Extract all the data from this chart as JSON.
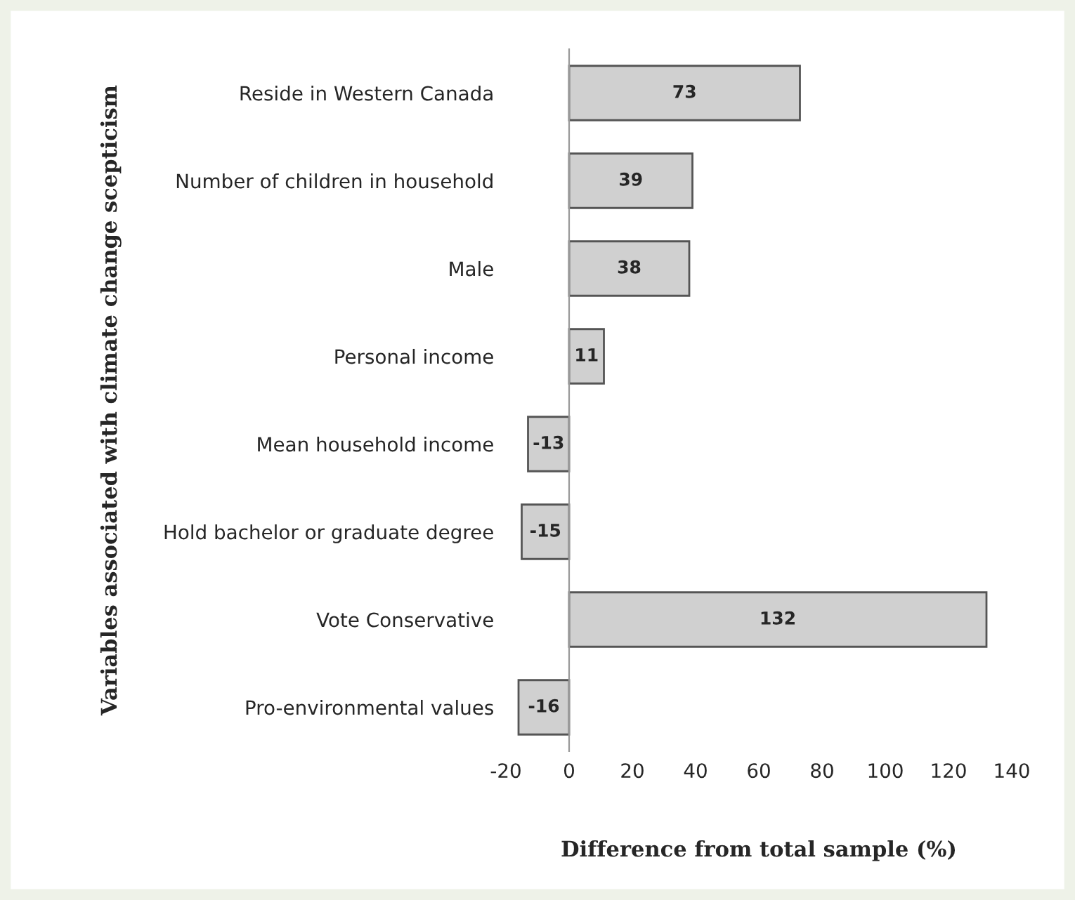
{
  "chart_data": {
    "type": "bar",
    "orientation": "horizontal",
    "xlabel": "Difference from total sample (%)",
    "ylabel": "Variables associated with climate change scepticism",
    "categories": [
      "Reside in Western Canada",
      "Number of children in household",
      "Male",
      "Personal income",
      "Mean household income",
      "Hold bachelor or graduate degree",
      "Vote Conservative",
      "Pro-environmental values"
    ],
    "values": [
      73,
      39,
      38,
      11,
      -13,
      -15,
      132,
      -16
    ],
    "color": "#d0d0d0",
    "data_labels": true,
    "xlim": [
      -20,
      140
    ],
    "xticks": [
      -20,
      0,
      20,
      40,
      60,
      80,
      100,
      120,
      140
    ],
    "legend": false
  }
}
